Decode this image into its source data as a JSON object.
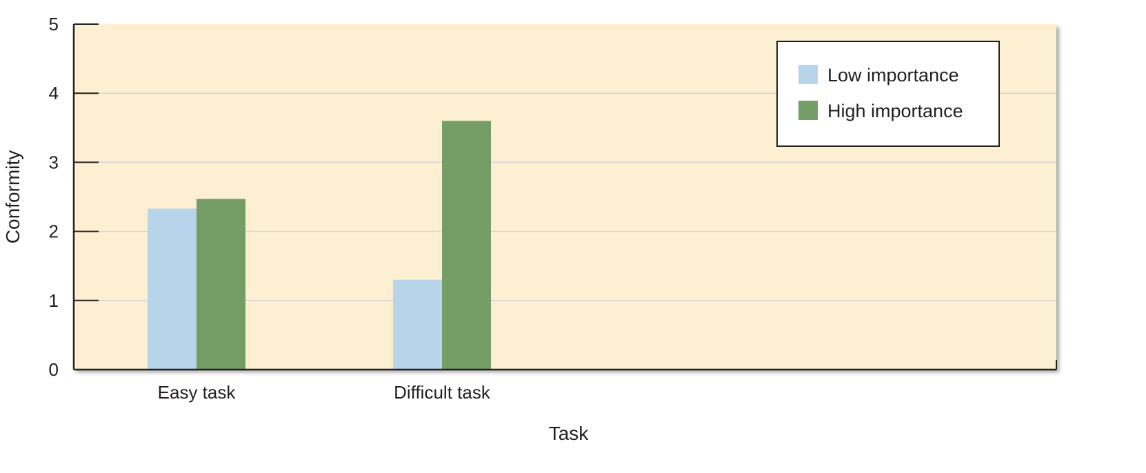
{
  "chart_data": {
    "type": "bar",
    "title": "",
    "xlabel": "Task",
    "ylabel": "Conformity",
    "categories": [
      "Easy task",
      "Difficult task"
    ],
    "series": [
      {
        "name": "Low importance",
        "values": [
          2.33,
          1.3
        ],
        "color": "#b7d4ea"
      },
      {
        "name": "High importance",
        "values": [
          2.47,
          3.6
        ],
        "color": "#759e66"
      }
    ],
    "ylim": [
      0,
      5
    ],
    "yticks": [
      "0",
      "1",
      "2",
      "3",
      "4",
      "5"
    ],
    "grid": true,
    "legend_position": "top-right",
    "plot_background": "#fdf0d2",
    "grid_color": "#cfd3d9"
  }
}
